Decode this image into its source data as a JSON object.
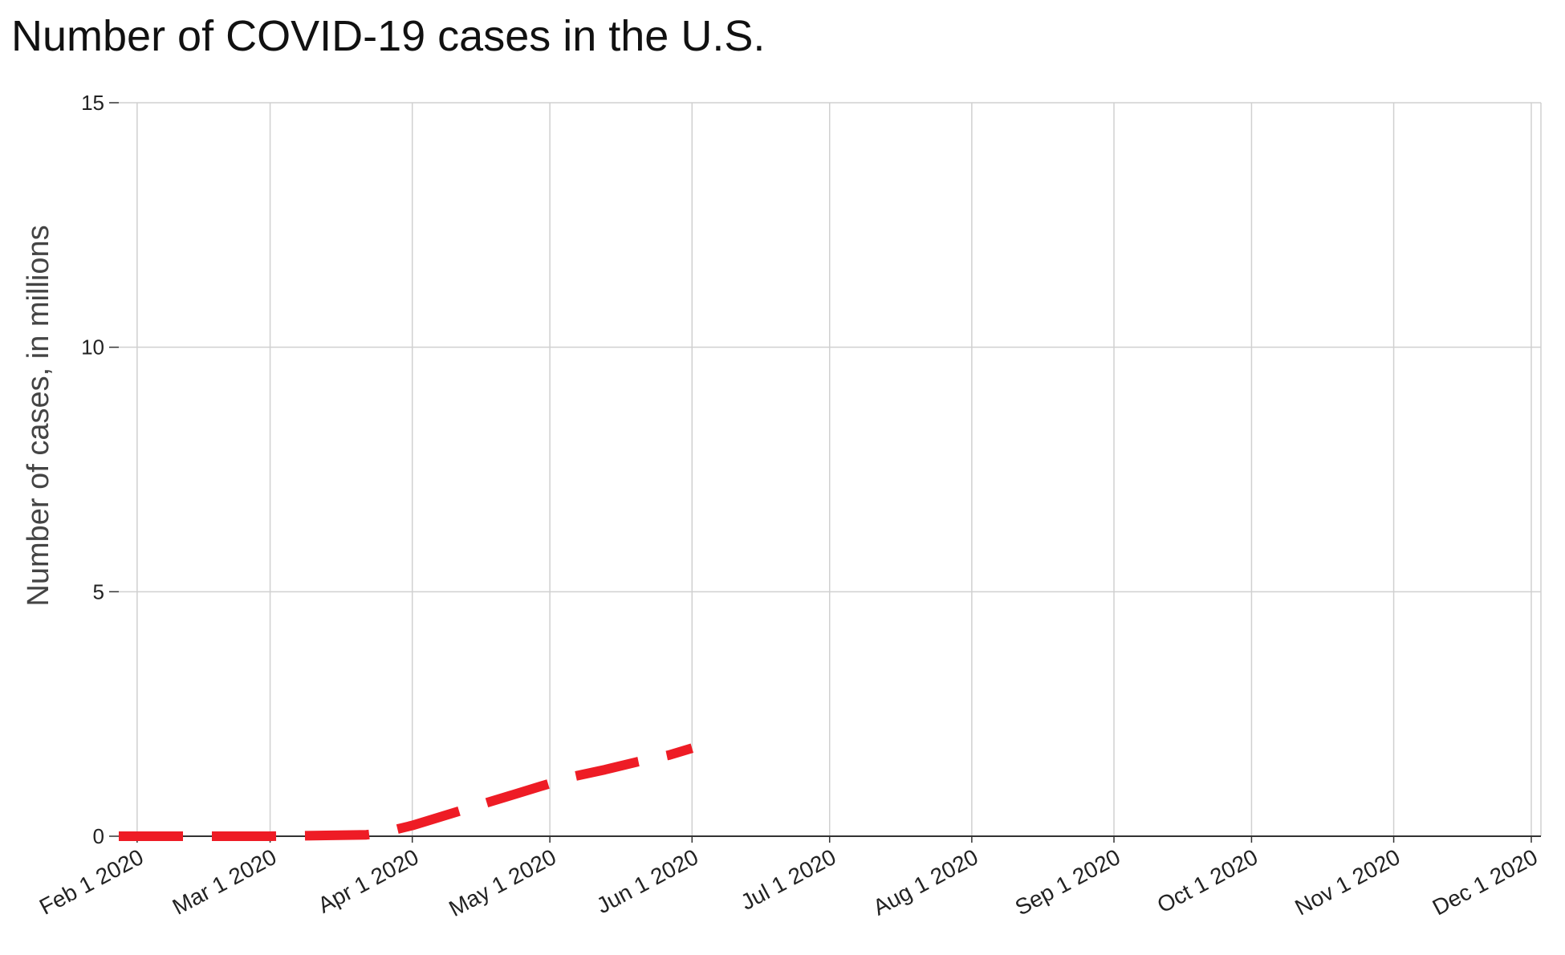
{
  "chart_data": {
    "type": "line",
    "title": "Number of COVID-19 cases in the U.S.",
    "xlabel": "",
    "ylabel": "Number of cases, in millions",
    "ylim": [
      0,
      15
    ],
    "yticks": [
      0,
      5,
      10,
      15
    ],
    "xlim": [
      "2020-01-28",
      "2020-12-01"
    ],
    "xticks": [
      {
        "date": "2020-02-01",
        "label": "Feb 1 2020"
      },
      {
        "date": "2020-03-01",
        "label": "Mar 1 2020"
      },
      {
        "date": "2020-04-01",
        "label": "Apr 1 2020"
      },
      {
        "date": "2020-05-01",
        "label": "May 1 2020"
      },
      {
        "date": "2020-06-01",
        "label": "Jun 1 2020"
      },
      {
        "date": "2020-07-01",
        "label": "Jul 1 2020"
      },
      {
        "date": "2020-08-01",
        "label": "Aug 1 2020"
      },
      {
        "date": "2020-09-01",
        "label": "Sep 1 2020"
      },
      {
        "date": "2020-10-01",
        "label": "Oct 1 2020"
      },
      {
        "date": "2020-11-01",
        "label": "Nov 1 2020"
      },
      {
        "date": "2020-12-01",
        "label": "Dec 1 2020"
      }
    ],
    "grid": true,
    "series": [
      {
        "color": "#ee1c25",
        "line_style": "dashed",
        "points": [
          {
            "x": "2020-01-28",
            "y": 0.0
          },
          {
            "x": "2020-03-01",
            "y": 0.0
          },
          {
            "x": "2020-03-22",
            "y": 0.03
          },
          {
            "x": "2020-03-25",
            "y": 0.06
          },
          {
            "x": "2020-04-01",
            "y": 0.22
          },
          {
            "x": "2020-04-08",
            "y": 0.42
          },
          {
            "x": "2020-04-15",
            "y": 0.62
          },
          {
            "x": "2020-04-22",
            "y": 0.82
          },
          {
            "x": "2020-04-29",
            "y": 1.02
          },
          {
            "x": "2020-05-06",
            "y": 1.22
          },
          {
            "x": "2020-05-13",
            "y": 1.36
          },
          {
            "x": "2020-05-20",
            "y": 1.52
          },
          {
            "x": "2020-05-27",
            "y": 1.66
          },
          {
            "x": "2020-06-01",
            "y": 1.8
          }
        ]
      }
    ]
  }
}
